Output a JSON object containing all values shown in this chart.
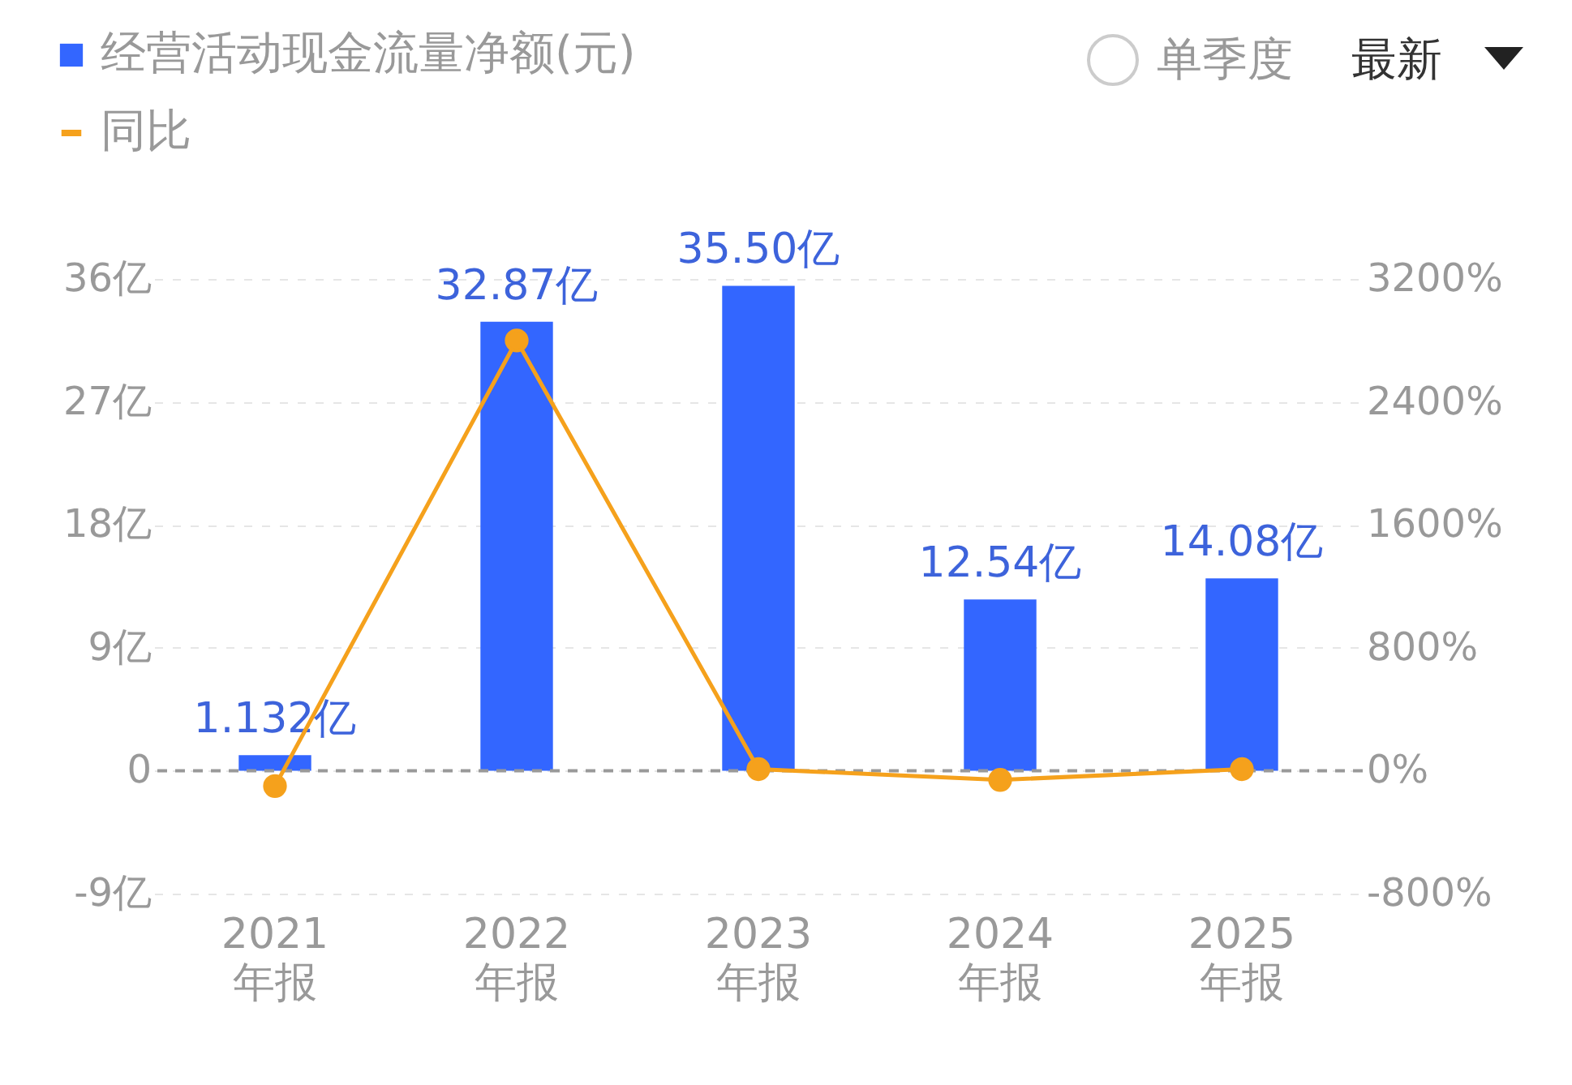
{
  "chart_data": {
    "type": "bar",
    "categories": [
      "2021\n年报",
      "2022\n年报",
      "2023\n年报",
      "2024\n年报",
      "2025\n年报"
    ],
    "series": [
      {
        "name": "经营活动现金流量净额(元)",
        "color": "#3366ff",
        "values": [
          1.132,
          32.87,
          35.5,
          12.54,
          14.08
        ],
        "value_labels": [
          "1.132亿",
          "32.87亿",
          "35.50亿",
          "12.54亿",
          "14.08亿"
        ]
      },
      {
        "name": "同比",
        "type": "line",
        "axis": "y2",
        "color": "#f5a11c",
        "values": [
          -100,
          2800,
          10,
          -60,
          10
        ]
      }
    ],
    "ylim": [
      -9,
      36
    ],
    "yticks": [
      {
        "value": -9,
        "label": "-9亿"
      },
      0,
      {
        "value": 9,
        "label": "9亿"
      },
      {
        "value": 18,
        "label": "18亿"
      },
      {
        "value": 27,
        "label": "27亿"
      },
      {
        "value": 36,
        "label": "36亿"
      }
    ],
    "y2lim": [
      -800,
      3200
    ],
    "y2ticks": [
      {
        "value": -800,
        "label": "-800%"
      },
      {
        "value": 0,
        "label": "0%"
      },
      {
        "value": 800,
        "label": "800%"
      },
      {
        "value": 1600,
        "label": "1600%"
      },
      {
        "value": 2400,
        "label": "2400%"
      },
      {
        "value": 3200,
        "label": "3200%"
      }
    ],
    "ref_lines": [
      {
        "axis": "y",
        "value": 0,
        "color": "#999999",
        "line_style": "dashed"
      }
    ],
    "grid": "y",
    "legend": "top left",
    "marker": "circle",
    "line_style": "solid",
    "annotations": [
      "单季度",
      "最新"
    ]
  }
}
